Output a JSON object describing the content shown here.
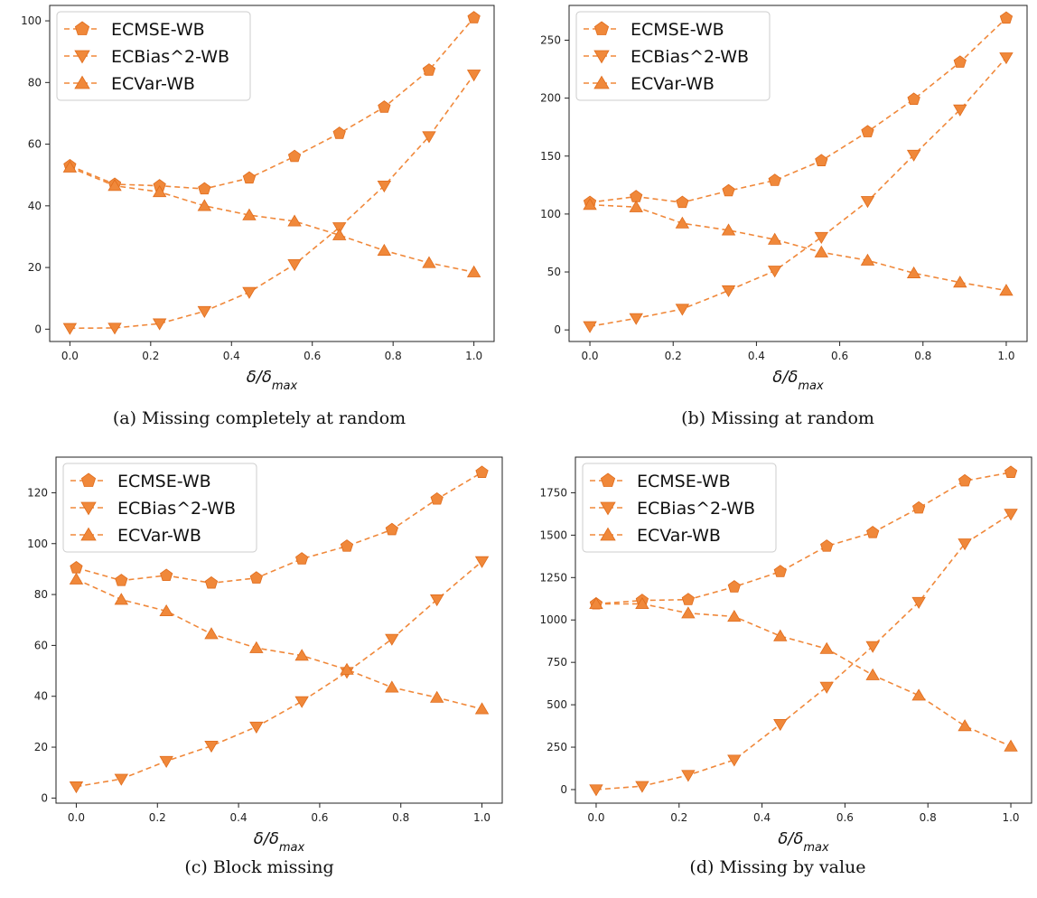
{
  "figure": {
    "color": "#f0883a",
    "edge_color": "#e06c1c"
  },
  "chart_data": [
    {
      "id": "a",
      "type": "line",
      "caption": "(a) Missing completely at random",
      "xlabel": "δ/δ",
      "xlabel_sub": "max",
      "ylabel": "",
      "xlim": [
        -0.05,
        1.05
      ],
      "ylim": [
        -4,
        105
      ],
      "xticks": [
        0.0,
        0.2,
        0.4,
        0.6,
        0.8,
        1.0
      ],
      "xtick_labels": [
        "0.0",
        "0.2",
        "0.4",
        "0.6",
        "0.8",
        "1.0"
      ],
      "yticks": [
        0,
        20,
        40,
        60,
        80,
        100
      ],
      "ytick_labels": [
        "0",
        "20",
        "40",
        "60",
        "80",
        "100"
      ],
      "legend": "upper-left",
      "grid": false,
      "x": [
        0.0,
        0.111,
        0.222,
        0.333,
        0.444,
        0.556,
        0.667,
        0.778,
        0.889,
        1.0
      ],
      "series": [
        {
          "name": "ECMSE-WB",
          "marker": "pentagon",
          "values": [
            53,
            47,
            46.5,
            45.5,
            49,
            56,
            63.5,
            72,
            84,
            101
          ]
        },
        {
          "name": "ECBias^2-WB",
          "marker": "triangle-down",
          "values": [
            0.3,
            0.4,
            1.8,
            5.8,
            12,
            21,
            33,
            46.5,
            62.5,
            82.5
          ]
        },
        {
          "name": "ECVar-WB",
          "marker": "triangle-up",
          "values": [
            52.5,
            46.5,
            44.5,
            40,
            37,
            35,
            30.5,
            25.5,
            21.5,
            18.5
          ]
        }
      ]
    },
    {
      "id": "b",
      "type": "line",
      "caption": "(b) Missing at random",
      "xlabel": "δ/δ",
      "xlabel_sub": "max",
      "ylabel": "",
      "xlim": [
        -0.05,
        1.05
      ],
      "ylim": [
        -10,
        280
      ],
      "xticks": [
        0.0,
        0.2,
        0.4,
        0.6,
        0.8,
        1.0
      ],
      "xtick_labels": [
        "0.0",
        "0.2",
        "0.4",
        "0.6",
        "0.8",
        "1.0"
      ],
      "yticks": [
        0,
        50,
        100,
        150,
        200,
        250
      ],
      "ytick_labels": [
        "0",
        "50",
        "100",
        "150",
        "200",
        "250"
      ],
      "legend": "upper-left",
      "grid": false,
      "x": [
        0.0,
        0.111,
        0.222,
        0.333,
        0.444,
        0.556,
        0.667,
        0.778,
        0.889,
        1.0
      ],
      "series": [
        {
          "name": "ECMSE-WB",
          "marker": "pentagon",
          "values": [
            110,
            115,
            110,
            120,
            129,
            146,
            171,
            199,
            231,
            269
          ]
        },
        {
          "name": "ECBias^2-WB",
          "marker": "triangle-down",
          "values": [
            3,
            10,
            18,
            34,
            51,
            80,
            111,
            151,
            190,
            235
          ]
        },
        {
          "name": "ECVar-WB",
          "marker": "triangle-up",
          "values": [
            108,
            106,
            92,
            86,
            78,
            67,
            60,
            49,
            41,
            34
          ]
        }
      ]
    },
    {
      "id": "c",
      "type": "line",
      "caption": "(c) Block missing",
      "xlabel": "δ/δ",
      "xlabel_sub": "max",
      "ylabel": "",
      "xlim": [
        -0.05,
        1.05
      ],
      "ylim": [
        -2,
        134
      ],
      "xticks": [
        0.0,
        0.2,
        0.4,
        0.6,
        0.8,
        1.0
      ],
      "xtick_labels": [
        "0.0",
        "0.2",
        "0.4",
        "0.6",
        "0.8",
        "1.0"
      ],
      "yticks": [
        0,
        20,
        40,
        60,
        80,
        100,
        120
      ],
      "ytick_labels": [
        "0",
        "20",
        "40",
        "60",
        "80",
        "100",
        "120"
      ],
      "legend": "upper-left",
      "grid": false,
      "x": [
        0.0,
        0.111,
        0.222,
        0.333,
        0.444,
        0.556,
        0.667,
        0.778,
        0.889,
        1.0
      ],
      "series": [
        {
          "name": "ECMSE-WB",
          "marker": "pentagon",
          "values": [
            90.5,
            85.5,
            87.5,
            84.5,
            86.5,
            94,
            99,
            105.5,
            117.5,
            128
          ]
        },
        {
          "name": "ECBias^2-WB",
          "marker": "triangle-down",
          "values": [
            4.5,
            7.5,
            14.5,
            20.5,
            28,
            38,
            49.5,
            62.5,
            78,
            93
          ]
        },
        {
          "name": "ECVar-WB",
          "marker": "triangle-up",
          "values": [
            86,
            78,
            73.5,
            64.5,
            59,
            56,
            50.5,
            43.5,
            39.5,
            35
          ]
        }
      ]
    },
    {
      "id": "d",
      "type": "line",
      "caption": "(d) Missing by value",
      "xlabel": "δ/δ",
      "xlabel_sub": "max",
      "ylabel": "",
      "xlim": [
        -0.05,
        1.05
      ],
      "ylim": [
        -80,
        1960
      ],
      "xticks": [
        0.0,
        0.2,
        0.4,
        0.6,
        0.8,
        1.0
      ],
      "xtick_labels": [
        "0.0",
        "0.2",
        "0.4",
        "0.6",
        "0.8",
        "1.0"
      ],
      "yticks": [
        0,
        250,
        500,
        750,
        1000,
        1250,
        1500,
        1750
      ],
      "ytick_labels": [
        "0",
        "250",
        "500",
        "750",
        "1000",
        "1250",
        "1500",
        "1750"
      ],
      "legend": "upper-left",
      "grid": false,
      "x": [
        0.0,
        0.111,
        0.222,
        0.333,
        0.444,
        0.556,
        0.667,
        0.778,
        0.889,
        1.0
      ],
      "series": [
        {
          "name": "ECMSE-WB",
          "marker": "pentagon",
          "values": [
            1095,
            1115,
            1120,
            1195,
            1285,
            1435,
            1515,
            1660,
            1820,
            1870
          ]
        },
        {
          "name": "ECBias^2-WB",
          "marker": "triangle-down",
          "values": [
            0,
            20,
            85,
            175,
            385,
            605,
            845,
            1105,
            1450,
            1625
          ]
        },
        {
          "name": "ECVar-WB",
          "marker": "triangle-up",
          "values": [
            1095,
            1095,
            1040,
            1020,
            905,
            830,
            675,
            555,
            375,
            255
          ]
        }
      ]
    }
  ]
}
